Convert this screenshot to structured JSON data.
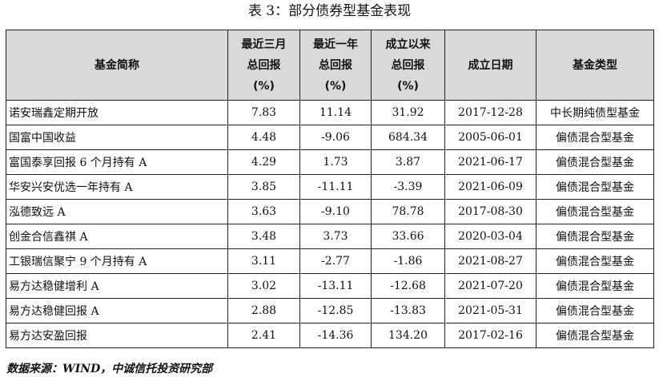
{
  "title": "表 3：部分债券型基金表现",
  "columns": [
    {
      "lines": [
        "基金简称"
      ]
    },
    {
      "lines": [
        "最近三月",
        "总回报",
        "(%)"
      ]
    },
    {
      "lines": [
        "最近一年",
        "总回报",
        "(%)"
      ]
    },
    {
      "lines": [
        "成立以来",
        "总回报",
        "(%)"
      ]
    },
    {
      "lines": [
        "成立日期"
      ]
    },
    {
      "lines": [
        "基金类型"
      ]
    }
  ],
  "rows": [
    [
      "诺安瑞鑫定期开放",
      "7.83",
      "11.14",
      "31.92",
      "2017-12-28",
      "中长期纯债型基金"
    ],
    [
      "国富中国收益",
      "4.48",
      "-9.06",
      "684.34",
      "2005-06-01",
      "偏债混合型基金"
    ],
    [
      "富国泰享回报 6 个月持有 A",
      "4.29",
      "1.73",
      "3.87",
      "2021-06-17",
      "偏债混合型基金"
    ],
    [
      "华安兴安优选一年持有 A",
      "3.85",
      "-11.11",
      "-3.39",
      "2021-06-09",
      "偏债混合型基金"
    ],
    [
      "泓德致远 A",
      "3.63",
      "-9.10",
      "78.78",
      "2017-08-30",
      "偏债混合型基金"
    ],
    [
      "创金合信鑫祺 A",
      "3.48",
      "3.73",
      "33.66",
      "2020-03-04",
      "偏债混合型基金"
    ],
    [
      "工银瑞信聚宁 9 个月持有 A",
      "3.11",
      "-2.77",
      "-1.86",
      "2021-08-27",
      "偏债混合型基金"
    ],
    [
      "易方达稳健增利 A",
      "3.02",
      "-13.11",
      "-12.68",
      "2021-07-20",
      "偏债混合型基金"
    ],
    [
      "易方达稳健回报 A",
      "2.88",
      "-12.85",
      "-13.83",
      "2021-05-31",
      "偏债混合型基金"
    ],
    [
      "易方达安盈回报",
      "2.41",
      "-14.36",
      "134.20",
      "2017-02-16",
      "偏债混合型基金"
    ]
  ],
  "source": "数据来源：WIND，中诚信托投资研究部"
}
